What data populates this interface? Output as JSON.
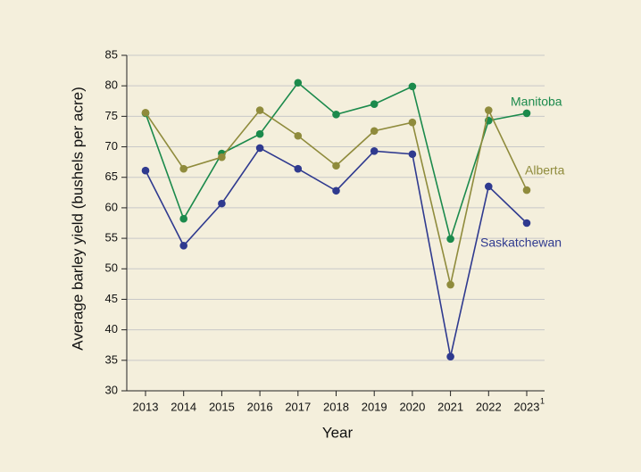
{
  "chart_data": {
    "type": "line",
    "xlabel": "Year",
    "ylabel": "Average barley yield (bushels per acre)",
    "categories": [
      "2013",
      "2014",
      "2015",
      "2016",
      "2017",
      "2018",
      "2019",
      "2020",
      "2021",
      "2022",
      "2023"
    ],
    "last_category_footnote": "1",
    "series": [
      {
        "name": "Manitoba",
        "color": "#1b8a4c",
        "values": [
          75.5,
          58.2,
          68.9,
          72.1,
          80.5,
          75.3,
          77.0,
          79.9,
          54.9,
          74.3,
          75.5
        ]
      },
      {
        "name": "Alberta",
        "color": "#8f8b3c",
        "values": [
          75.6,
          66.4,
          68.3,
          76.0,
          71.8,
          66.9,
          72.6,
          74.0,
          47.4,
          76.0,
          62.9
        ]
      },
      {
        "name": "Saskatchewan",
        "color": "#2f3a8f",
        "values": [
          66.1,
          53.8,
          60.7,
          69.8,
          66.4,
          62.8,
          69.3,
          68.8,
          35.6,
          63.5,
          57.5
        ]
      }
    ],
    "ylim": [
      30,
      85
    ],
    "yticks": [
      30,
      35,
      40,
      45,
      50,
      55,
      60,
      65,
      70,
      75,
      80,
      85
    ],
    "grid": true
  }
}
